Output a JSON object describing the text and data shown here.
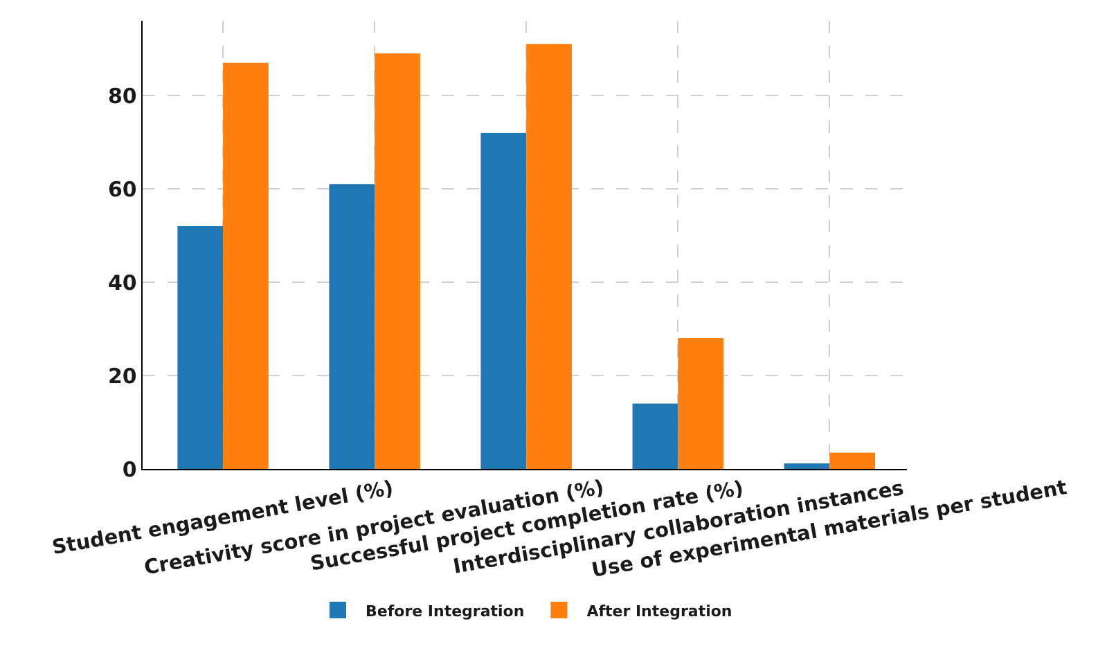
{
  "chart_data": {
    "type": "bar",
    "categories": [
      "Student engagement level (%)",
      "Creativity score in project evaluation (%)",
      "Successful project completion rate (%)",
      "Interdisciplinary collaboration instances",
      "Use of experimental materials per student"
    ],
    "series": [
      {
        "name": "Before Integration",
        "color": "#1f77b4",
        "values": [
          52,
          61,
          72,
          14,
          1.2
        ]
      },
      {
        "name": "After Integration",
        "color": "#ff7f0e",
        "values": [
          87,
          89,
          91,
          28,
          3.5
        ]
      }
    ],
    "ylim": [
      0,
      96
    ],
    "yticks": [
      0,
      20,
      40,
      60,
      80
    ],
    "grid": true,
    "legend": "bottom"
  }
}
